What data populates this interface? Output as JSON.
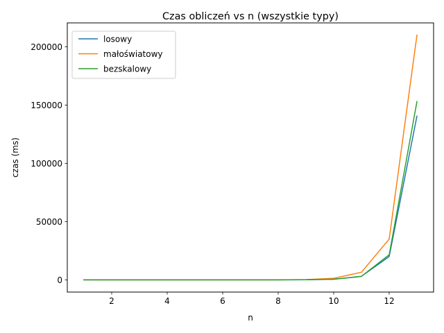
{
  "chart_data": {
    "type": "line",
    "title": "Czas obliczeń vs n (wszystkie typy)",
    "xlabel": "n",
    "ylabel": "czas (ms)",
    "x": [
      1,
      2,
      3,
      4,
      5,
      6,
      7,
      8,
      9,
      10,
      11,
      12,
      13
    ],
    "xlim": [
      0.4,
      13.6
    ],
    "ylim": [
      -10500,
      220500
    ],
    "xticks": [
      2,
      4,
      6,
      8,
      10,
      12
    ],
    "yticks": [
      0,
      50000,
      100000,
      150000,
      200000
    ],
    "grid": false,
    "legend_position": "upper-left",
    "series": [
      {
        "name": "losowy",
        "color": "#1f77b4",
        "values": [
          0,
          0,
          0,
          0,
          0,
          0,
          0,
          0,
          100,
          500,
          3000,
          20000,
          140500
        ]
      },
      {
        "name": "małoświatowy",
        "color": "#ff7f0e",
        "values": [
          0,
          0,
          0,
          0,
          0,
          0,
          0,
          0,
          200,
          1300,
          6500,
          35000,
          210000
        ]
      },
      {
        "name": "bezskalowy",
        "color": "#2ca02c",
        "values": [
          0,
          0,
          0,
          0,
          0,
          0,
          0,
          0,
          100,
          500,
          3000,
          21500,
          153000
        ]
      }
    ]
  }
}
